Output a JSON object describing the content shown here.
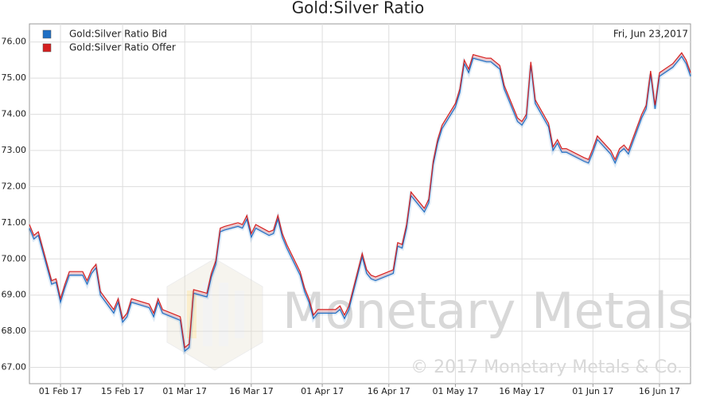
{
  "chart_data": {
    "type": "line",
    "title": "Gold:Silver Ratio",
    "date_label": "Fri, Jun 23,2017",
    "watermark_logo": "Monetary Metals",
    "watermark_copyright": "© 2017 Monetary Metals & Co.",
    "legend": "top-left",
    "grid": true,
    "x": [
      "2017-01-25",
      "2017-01-26",
      "2017-01-27",
      "2017-01-30",
      "2017-01-31",
      "2017-02-01",
      "2017-02-02",
      "2017-02-03",
      "2017-02-06",
      "2017-02-07",
      "2017-02-08",
      "2017-02-09",
      "2017-02-10",
      "2017-02-13",
      "2017-02-14",
      "2017-02-15",
      "2017-02-16",
      "2017-02-17",
      "2017-02-21",
      "2017-02-22",
      "2017-02-23",
      "2017-02-24",
      "2017-02-27",
      "2017-02-28",
      "2017-03-01",
      "2017-03-02",
      "2017-03-03",
      "2017-03-06",
      "2017-03-07",
      "2017-03-08",
      "2017-03-09",
      "2017-03-10",
      "2017-03-13",
      "2017-03-14",
      "2017-03-15",
      "2017-03-16",
      "2017-03-17",
      "2017-03-20",
      "2017-03-21",
      "2017-03-22",
      "2017-03-23",
      "2017-03-24",
      "2017-03-27",
      "2017-03-28",
      "2017-03-29",
      "2017-03-30",
      "2017-03-31",
      "2017-04-03",
      "2017-04-04",
      "2017-04-05",
      "2017-04-06",
      "2017-04-07",
      "2017-04-10",
      "2017-04-11",
      "2017-04-12",
      "2017-04-13",
      "2017-04-17",
      "2017-04-18",
      "2017-04-19",
      "2017-04-20",
      "2017-04-21",
      "2017-04-24",
      "2017-04-25",
      "2017-04-26",
      "2017-04-27",
      "2017-04-28",
      "2017-05-01",
      "2017-05-02",
      "2017-05-03",
      "2017-05-04",
      "2017-05-05",
      "2017-05-08",
      "2017-05-09",
      "2017-05-10",
      "2017-05-11",
      "2017-05-12",
      "2017-05-15",
      "2017-05-16",
      "2017-05-17",
      "2017-05-18",
      "2017-05-19",
      "2017-05-22",
      "2017-05-23",
      "2017-05-24",
      "2017-05-25",
      "2017-05-26",
      "2017-05-30",
      "2017-05-31",
      "2017-06-01",
      "2017-06-02",
      "2017-06-05",
      "2017-06-06",
      "2017-06-07",
      "2017-06-08",
      "2017-06-09",
      "2017-06-12",
      "2017-06-13",
      "2017-06-14",
      "2017-06-15",
      "2017-06-16",
      "2017-06-19",
      "2017-06-20",
      "2017-06-21",
      "2017-06-22",
      "2017-06-23"
    ],
    "series": [
      {
        "name": "Gold:Silver Ratio Bid",
        "color": "#1f6fc4",
        "values": [
          70.85,
          70.55,
          70.65,
          69.3,
          69.35,
          68.8,
          69.2,
          69.55,
          69.55,
          69.3,
          69.6,
          69.75,
          69.0,
          68.5,
          68.8,
          68.25,
          68.4,
          68.8,
          68.65,
          68.4,
          68.8,
          68.5,
          68.35,
          68.3,
          67.45,
          67.55,
          69.05,
          68.95,
          69.5,
          69.85,
          70.75,
          70.8,
          70.9,
          70.85,
          71.1,
          70.6,
          70.85,
          70.65,
          70.7,
          71.1,
          70.6,
          70.3,
          69.55,
          69.1,
          68.8,
          68.35,
          68.5,
          68.5,
          68.5,
          68.6,
          68.35,
          68.6,
          70.05,
          69.6,
          69.45,
          69.4,
          69.6,
          70.35,
          70.3,
          70.85,
          71.75,
          71.3,
          71.55,
          72.6,
          73.2,
          73.6,
          74.2,
          74.6,
          75.4,
          75.15,
          75.55,
          75.45,
          75.45,
          75.35,
          75.25,
          74.7,
          73.8,
          73.7,
          73.9,
          75.35,
          74.3,
          73.65,
          73.0,
          73.2,
          72.95,
          72.95,
          72.7,
          72.65,
          72.95,
          73.3,
          72.9,
          72.65,
          72.95,
          73.05,
          72.9,
          73.9,
          74.15,
          75.1,
          74.15,
          75.05,
          75.3,
          75.45,
          75.6,
          75.4,
          75.05
        ]
      },
      {
        "name": "Gold:Silver Ratio Offer",
        "color": "#d42020",
        "values": [
          70.95,
          70.65,
          70.75,
          69.4,
          69.45,
          68.9,
          69.3,
          69.65,
          69.65,
          69.4,
          69.7,
          69.85,
          69.1,
          68.6,
          68.9,
          68.35,
          68.5,
          68.9,
          68.75,
          68.5,
          68.9,
          68.6,
          68.45,
          68.4,
          67.55,
          67.65,
          69.15,
          69.05,
          69.6,
          69.95,
          70.85,
          70.9,
          71.0,
          70.95,
          71.2,
          70.7,
          70.95,
          70.75,
          70.8,
          71.2,
          70.7,
          70.4,
          69.65,
          69.2,
          68.9,
          68.45,
          68.6,
          68.6,
          68.6,
          68.7,
          68.45,
          68.7,
          70.15,
          69.7,
          69.55,
          69.5,
          69.7,
          70.45,
          70.4,
          70.95,
          71.85,
          71.4,
          71.65,
          72.7,
          73.3,
          73.7,
          74.3,
          74.7,
          75.5,
          75.25,
          75.65,
          75.55,
          75.55,
          75.45,
          75.35,
          74.8,
          73.9,
          73.8,
          74.0,
          75.45,
          74.4,
          73.75,
          73.1,
          73.3,
          73.05,
          73.05,
          72.8,
          72.75,
          73.05,
          73.4,
          73.0,
          72.75,
          73.05,
          73.15,
          73.0,
          74.0,
          74.25,
          75.2,
          74.25,
          75.15,
          75.4,
          75.55,
          75.7,
          75.5,
          75.15
        ]
      }
    ],
    "xlim": [
      "2017-01-25",
      "2017-06-23"
    ],
    "xticks": [
      {
        "value": "2017-02-01",
        "label": "01 Feb 17"
      },
      {
        "value": "2017-02-15",
        "label": "15 Feb 17"
      },
      {
        "value": "2017-03-01",
        "label": "01 Mar 17"
      },
      {
        "value": "2017-03-16",
        "label": "16 Mar 17"
      },
      {
        "value": "2017-04-01",
        "label": "01 Apr 17"
      },
      {
        "value": "2017-04-16",
        "label": "16 Apr 17"
      },
      {
        "value": "2017-05-01",
        "label": "01 May 17"
      },
      {
        "value": "2017-05-16",
        "label": "16 May 17"
      },
      {
        "value": "2017-06-01",
        "label": "01 Jun 17"
      },
      {
        "value": "2017-06-16",
        "label": "16 Jun 17"
      }
    ],
    "ylim": [
      66.55,
      76.5
    ],
    "yticks": [
      {
        "value": 67,
        "label": "67.00"
      },
      {
        "value": 68,
        "label": "68.00"
      },
      {
        "value": 69,
        "label": "69.00"
      },
      {
        "value": 70,
        "label": "70.00"
      },
      {
        "value": 71,
        "label": "71.00"
      },
      {
        "value": 72,
        "label": "72.00"
      },
      {
        "value": 73,
        "label": "73.00"
      },
      {
        "value": 74,
        "label": "74.00"
      },
      {
        "value": 75,
        "label": "75.00"
      },
      {
        "value": 76,
        "label": "76.00"
      }
    ]
  }
}
